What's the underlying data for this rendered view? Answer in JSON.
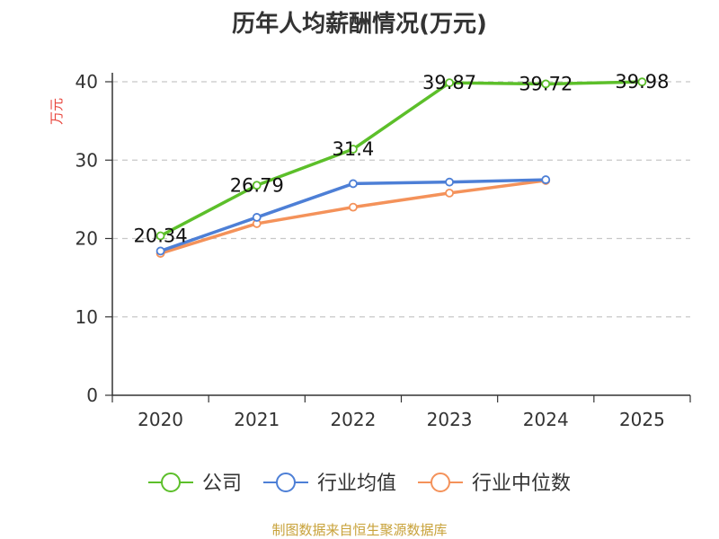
{
  "chart_data": {
    "type": "line",
    "title": "历年人均薪酬情况(万元)",
    "ylabel": "万元",
    "categories": [
      "2020",
      "2021",
      "2022",
      "2023",
      "2024",
      "2025"
    ],
    "ylim": [
      0,
      40
    ],
    "yticks": [
      0,
      10,
      20,
      30,
      40
    ],
    "grid": true,
    "legend_position": "bottom",
    "series": [
      {
        "name": "公司",
        "color": "#5cbf2a",
        "values": [
          20.34,
          26.79,
          31.4,
          39.87,
          39.72,
          39.98
        ],
        "data_labels": [
          "20.34",
          "26.79",
          "31.4",
          "39.87",
          "39.72",
          "39.98"
        ]
      },
      {
        "name": "行业均值",
        "color": "#4d7fd6",
        "values": [
          18.4,
          22.7,
          27.0,
          27.2,
          27.5,
          null
        ]
      },
      {
        "name": "行业中位数",
        "color": "#f4925a",
        "values": [
          18.1,
          21.9,
          24.0,
          25.8,
          27.4,
          null
        ]
      }
    ]
  },
  "source": "制图数据来自恒生聚源数据库"
}
